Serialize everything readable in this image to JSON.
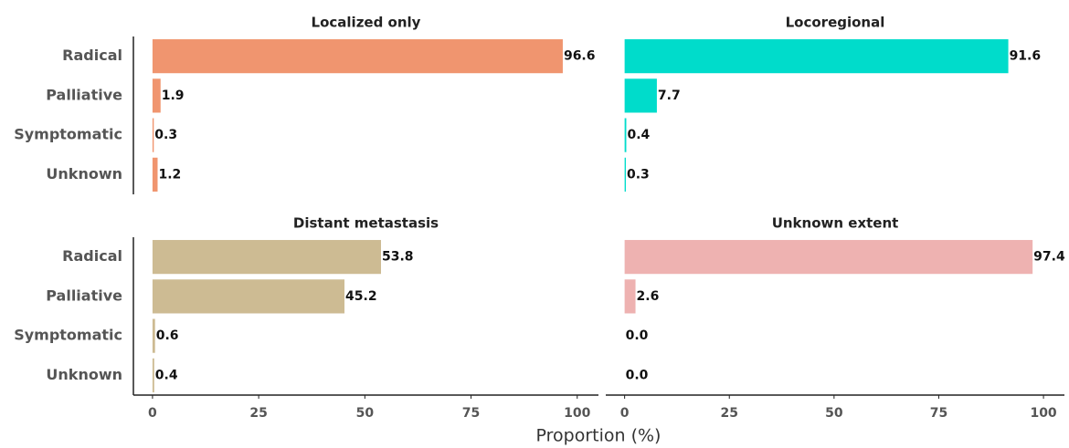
{
  "axis_label": "Proportion (%)",
  "chart_data": [
    {
      "type": "hbar",
      "title": "Localized only",
      "categories": [
        "Radical",
        "Palliative",
        "Symptomatic",
        "Unknown"
      ],
      "values": [
        96.6,
        1.9,
        0.3,
        1.2
      ],
      "color": "#f0956f",
      "xlim": [
        -4.5,
        105
      ]
    },
    {
      "type": "hbar",
      "title": "Locoregional",
      "values": [
        91.6,
        7.7,
        0.4,
        0.3
      ],
      "color": "#00dccb",
      "xlim": [
        -4.5,
        105
      ]
    },
    {
      "type": "hbar",
      "title": "Distant metastasis",
      "categories": [
        "Radical",
        "Palliative",
        "Symptomatic",
        "Unknown"
      ],
      "values": [
        53.8,
        45.2,
        0.6,
        0.4
      ],
      "color": "#cdbb93",
      "xlim": [
        -4.5,
        105
      ],
      "xticks": [
        0,
        25,
        50,
        75,
        100
      ]
    },
    {
      "type": "hbar",
      "title": "Unknown extent",
      "values": [
        97.4,
        2.6,
        0.0,
        0.0
      ],
      "value_labels": [
        "97.4",
        "2.6",
        "0.0",
        "0.0"
      ],
      "color": "#eeb2b1",
      "xlim": [
        -4.5,
        105
      ],
      "xticks": [
        0,
        25,
        50,
        75,
        100
      ]
    }
  ]
}
